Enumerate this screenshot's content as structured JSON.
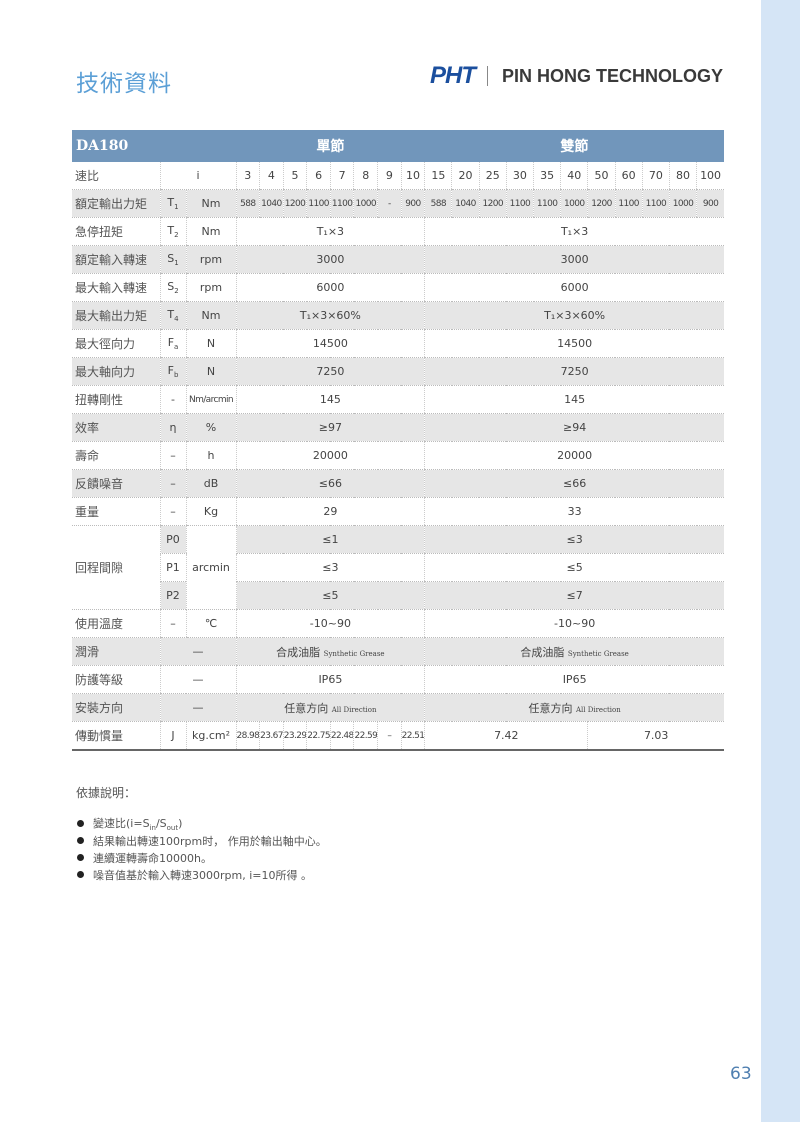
{
  "header": {
    "title": "技術資料",
    "logo": "PHT",
    "company": "PIN HONG TECHNOLOGY"
  },
  "table": {
    "model": "DA180",
    "single_label": "單節",
    "double_label": "雙節",
    "ratio_label": "速比",
    "ratio_symbol": "i",
    "ratios_single": [
      "3",
      "4",
      "5",
      "6",
      "7",
      "8",
      "9",
      "10"
    ],
    "ratios_double": [
      "15",
      "20",
      "25",
      "30",
      "35",
      "40",
      "50",
      "60",
      "70",
      "80",
      "100"
    ],
    "rows": [
      {
        "label": "額定輸出力矩",
        "sym": "T",
        "sub": "1",
        "unit": "Nm",
        "single": [
          "588",
          "1040",
          "1200",
          "1100",
          "1100",
          "1000",
          "-",
          "900"
        ],
        "double": [
          "588",
          "1040",
          "1200",
          "1100",
          "1100",
          "1000",
          "1200",
          "1100",
          "1100",
          "1000",
          "900"
        ]
      },
      {
        "label": "急停扭矩",
        "sym": "T",
        "sub": "2",
        "unit": "Nm",
        "single_all": "T₁×3",
        "double_all": "T₁×3"
      },
      {
        "label": "額定輸入轉速",
        "sym": "S",
        "sub": "1",
        "unit": "rpm",
        "single_all": "3000",
        "double_all": "3000"
      },
      {
        "label": "最大輸入轉速",
        "sym": "S",
        "sub": "2",
        "unit": "rpm",
        "single_all": "6000",
        "double_all": "6000"
      },
      {
        "label": "最大輸出力矩",
        "sym": "T",
        "sub": "4",
        "unit": "Nm",
        "single_all": "T₁×3×60%",
        "double_all": "T₁×3×60%"
      },
      {
        "label": "最大徑向力",
        "sym": "F",
        "sub": "a",
        "unit": "N",
        "single_all": "14500",
        "double_all": "14500"
      },
      {
        "label": "最大軸向力",
        "sym": "F",
        "sub": "b",
        "unit": "N",
        "single_all": "7250",
        "double_all": "7250"
      },
      {
        "label": "扭轉剛性",
        "sym": "-",
        "unit": "Nm/arcmin",
        "single_all": "145",
        "double_all": "145"
      },
      {
        "label": "效率",
        "sym": "η",
        "unit": "%",
        "single_all": "≥97",
        "double_all": "≥94"
      },
      {
        "label": "壽命",
        "sym": "–",
        "unit": "h",
        "single_all": "20000",
        "double_all": "20000"
      },
      {
        "label": "反饋噪音",
        "sym": "–",
        "unit": "dB",
        "single_all": "≤66",
        "double_all": "≤66"
      },
      {
        "label": "重量",
        "sym": "–",
        "unit": "Kg",
        "single_all": "29",
        "double_all": "33"
      }
    ],
    "backlash": {
      "label": "回程間隙",
      "unit": "arcmin",
      "rows": [
        {
          "sym": "P0",
          "single_all": "≤1",
          "double_all": "≤3"
        },
        {
          "sym": "P1",
          "single_all": "≤3",
          "double_all": "≤5"
        },
        {
          "sym": "P2",
          "single_all": "≤5",
          "double_all": "≤7"
        }
      ]
    },
    "rows2": [
      {
        "label": "使用溫度",
        "sym": "–",
        "unit": "℃",
        "single_all": "-10~90",
        "double_all": "-10~90"
      },
      {
        "label": "潤滑",
        "dash": "—",
        "single_all": "合成油脂",
        "single_en": "Synthetic Grease",
        "double_all": "合成油脂",
        "double_en": "Synthetic Grease"
      },
      {
        "label": "防護等級",
        "dash": "—",
        "single_all": "IP65",
        "double_all": "IP65"
      },
      {
        "label": "安裝方向",
        "dash": "—",
        "single_all": "任意方向",
        "single_en": "All Direction",
        "double_all": "任意方向",
        "double_en": "All Direction"
      }
    ],
    "inertia": {
      "label": "傳動慣量",
      "sym": "J",
      "unit": "kg.cm²",
      "single": [
        "28.98",
        "23.67",
        "23.29",
        "22.75",
        "22.48",
        "22.59",
        "–",
        "22.51"
      ],
      "double_a": "7.42",
      "double_b": "7.03"
    }
  },
  "notes": {
    "title": "依據說明：",
    "items": [
      "變速比(i=Sin/Sout)",
      "結果輸出轉速100rpm时， 作用於輸出軸中心。",
      "連續運轉壽命10000h。",
      "噪音值基於輸入轉速3000rpm, i=10所得 。"
    ]
  },
  "page_number": "63"
}
